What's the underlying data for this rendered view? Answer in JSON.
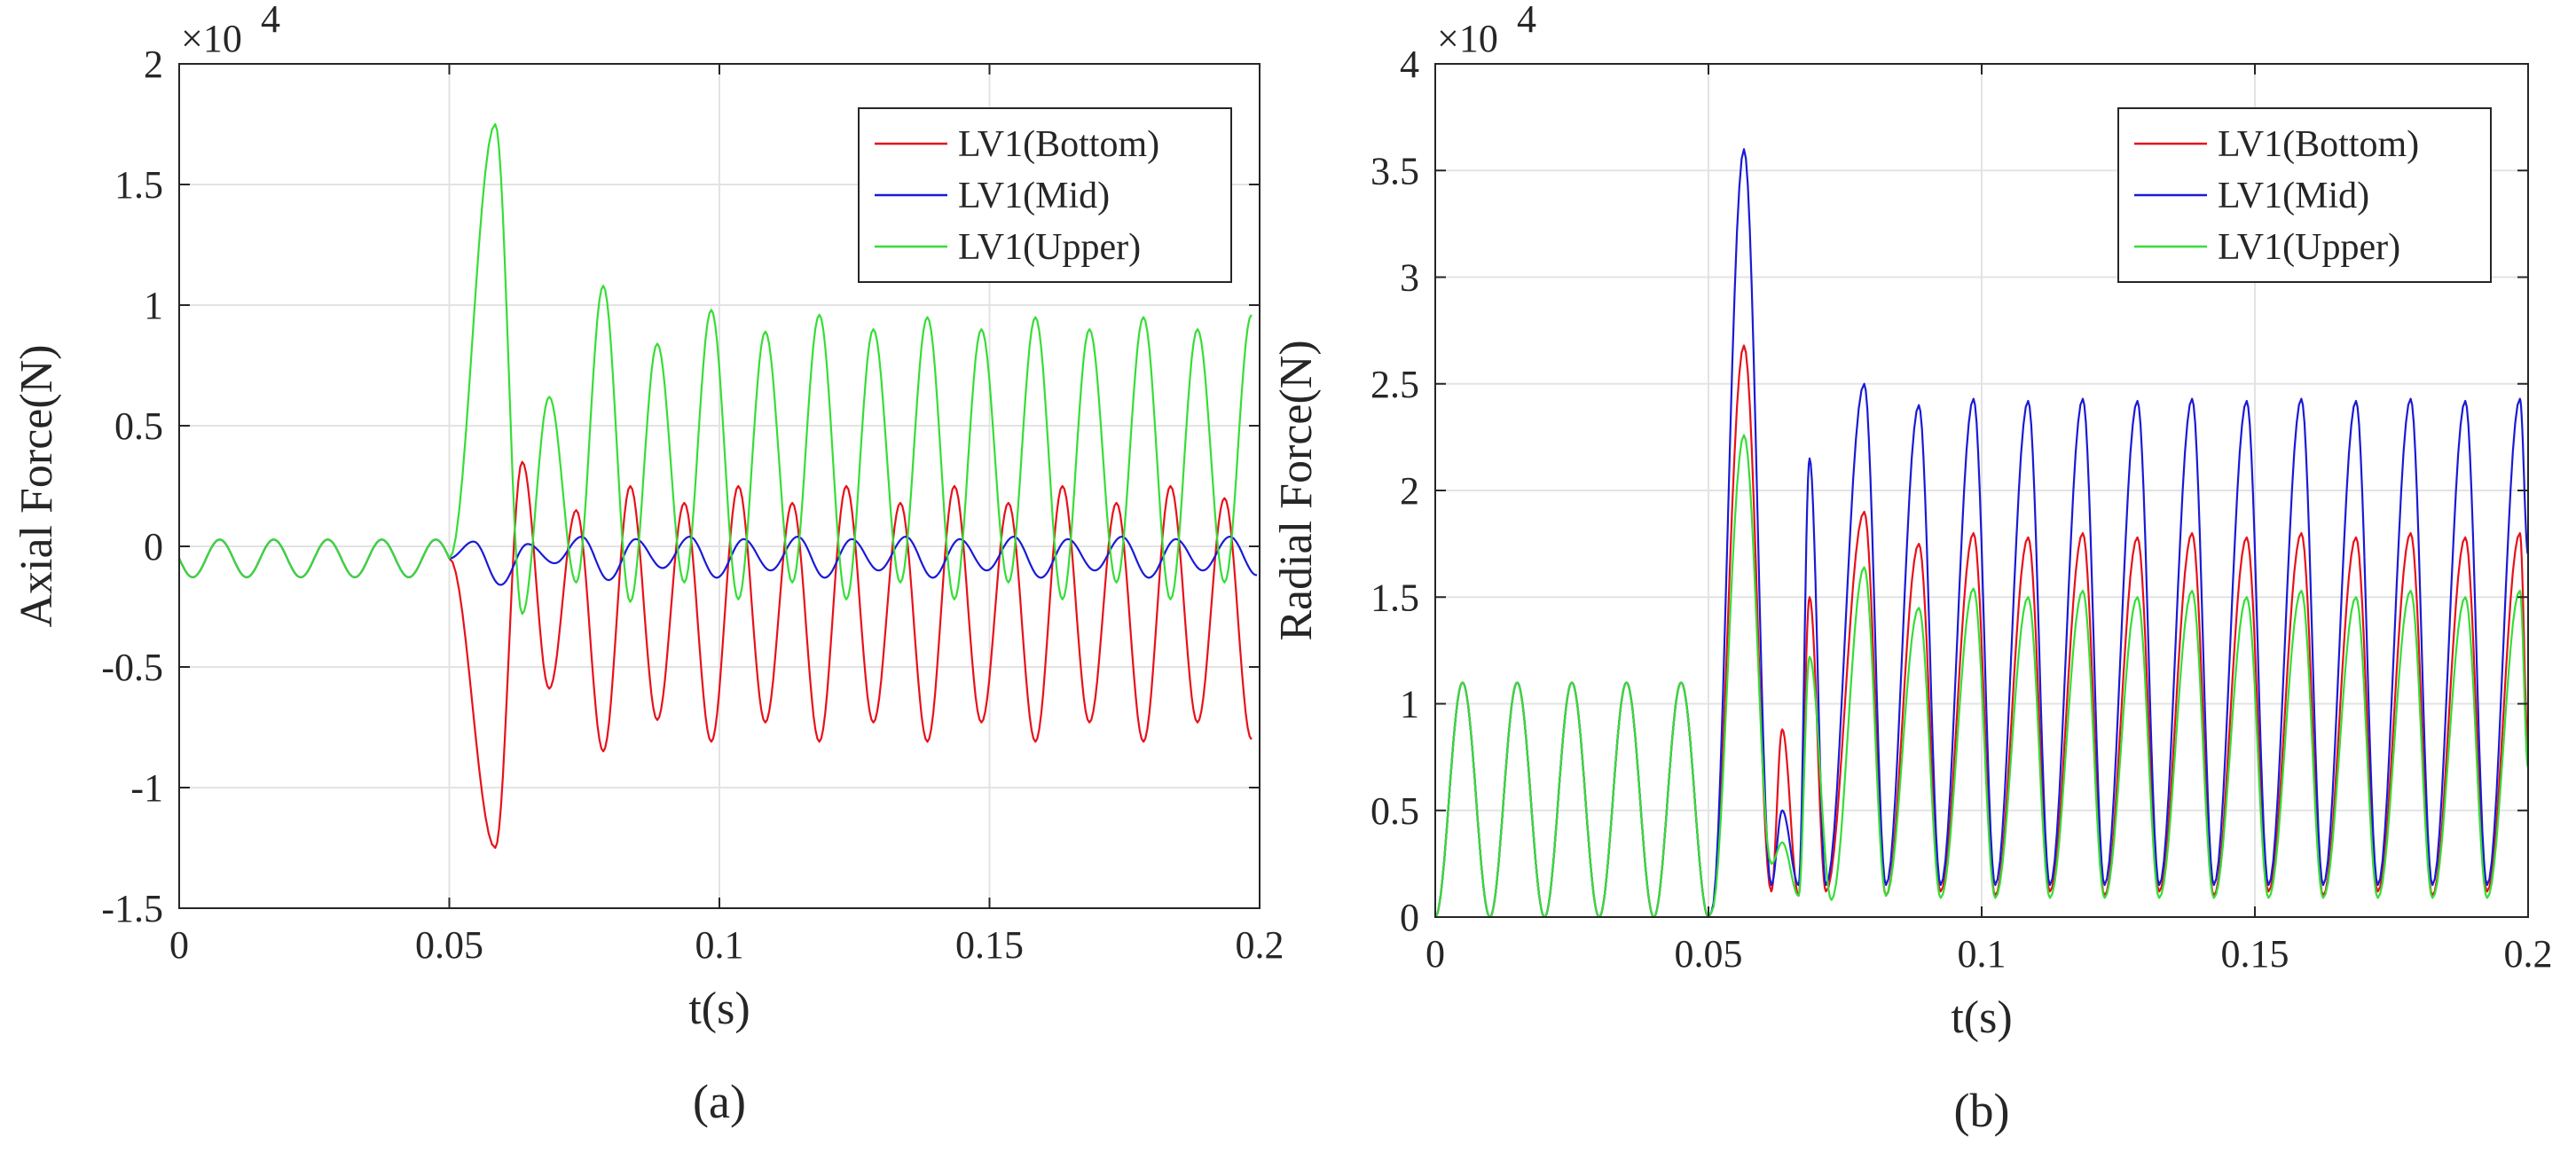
{
  "chart_data": [
    {
      "type": "line",
      "panel_label": "(a)",
      "xlabel": "t(s)",
      "ylabel": "Axial Force(N)",
      "xlim": [
        0,
        0.2
      ],
      "ylim": [
        -15000,
        20000
      ],
      "xticks": [
        0,
        0.05,
        0.1,
        0.15,
        0.2
      ],
      "xtick_labels": [
        "0",
        "0.05",
        "0.1",
        "0.15",
        "0.2"
      ],
      "yticks": [
        -15000,
        -10000,
        -5000,
        0,
        5000,
        10000,
        15000,
        20000
      ],
      "ytick_labels": [
        "-1.5",
        "-1",
        "-0.5",
        "0",
        "0.5",
        "1",
        "1.5",
        "2"
      ],
      "y_multiplier": "×10",
      "y_multiplier_exp": "4",
      "grid": true,
      "legend_position": "top-right",
      "pre_fault": {
        "end": 0.05,
        "amplitude": 1200,
        "offset": -500,
        "period": 0.01
      },
      "series": [
        {
          "name": "LV1(Bottom)",
          "color": "#e8101a",
          "peaks": [
            {
              "t": 0.0585,
              "v": -12500
            },
            {
              "t": 0.0635,
              "v": 3500
            },
            {
              "t": 0.0685,
              "v": -5900
            },
            {
              "t": 0.0735,
              "v": 1500
            },
            {
              "t": 0.0785,
              "v": -8500
            },
            {
              "t": 0.0835,
              "v": 2500
            },
            {
              "t": 0.0885,
              "v": -7200
            },
            {
              "t": 0.0935,
              "v": 1800
            },
            {
              "t": 0.0985,
              "v": -8100
            },
            {
              "t": 0.1035,
              "v": 2500
            },
            {
              "t": 0.1085,
              "v": -7300
            },
            {
              "t": 0.1135,
              "v": 1800
            },
            {
              "t": 0.1185,
              "v": -8100
            },
            {
              "t": 0.1235,
              "v": 2500
            },
            {
              "t": 0.1285,
              "v": -7300
            },
            {
              "t": 0.1335,
              "v": 1800
            },
            {
              "t": 0.1385,
              "v": -8100
            },
            {
              "t": 0.1435,
              "v": 2500
            },
            {
              "t": 0.1485,
              "v": -7300
            },
            {
              "t": 0.1535,
              "v": 1800
            },
            {
              "t": 0.1585,
              "v": -8100
            },
            {
              "t": 0.1635,
              "v": 2500
            },
            {
              "t": 0.1685,
              "v": -7300
            },
            {
              "t": 0.1735,
              "v": 1800
            },
            {
              "t": 0.1785,
              "v": -8100
            },
            {
              "t": 0.1835,
              "v": 2500
            },
            {
              "t": 0.1885,
              "v": -7300
            },
            {
              "t": 0.1935,
              "v": 2000
            },
            {
              "t": 0.1985,
              "v": -8000
            }
          ]
        },
        {
          "name": "LV1(Mid)",
          "color": "#1a1ad6",
          "peaks": [
            {
              "t": 0.0545,
              "v": 200
            },
            {
              "t": 0.0595,
              "v": -1600
            },
            {
              "t": 0.0645,
              "v": 100
            },
            {
              "t": 0.0695,
              "v": -700
            },
            {
              "t": 0.0745,
              "v": 400
            },
            {
              "t": 0.0795,
              "v": -1400
            },
            {
              "t": 0.0845,
              "v": 300
            },
            {
              "t": 0.0895,
              "v": -900
            },
            {
              "t": 0.0945,
              "v": 400
            },
            {
              "t": 0.0995,
              "v": -1300
            },
            {
              "t": 0.1045,
              "v": 300
            },
            {
              "t": 0.1095,
              "v": -1000
            },
            {
              "t": 0.1145,
              "v": 400
            },
            {
              "t": 0.1195,
              "v": -1300
            },
            {
              "t": 0.1245,
              "v": 300
            },
            {
              "t": 0.1295,
              "v": -1000
            },
            {
              "t": 0.1345,
              "v": 400
            },
            {
              "t": 0.1395,
              "v": -1300
            },
            {
              "t": 0.1445,
              "v": 300
            },
            {
              "t": 0.1495,
              "v": -1000
            },
            {
              "t": 0.1545,
              "v": 400
            },
            {
              "t": 0.1595,
              "v": -1300
            },
            {
              "t": 0.1645,
              "v": 300
            },
            {
              "t": 0.1695,
              "v": -1000
            },
            {
              "t": 0.1745,
              "v": 400
            },
            {
              "t": 0.1795,
              "v": -1300
            },
            {
              "t": 0.1845,
              "v": 300
            },
            {
              "t": 0.1895,
              "v": -1000
            },
            {
              "t": 0.1945,
              "v": 400
            },
            {
              "t": 0.1995,
              "v": -1200
            }
          ]
        },
        {
          "name": "LV1(Upper)",
          "color": "#36dd36",
          "peaks": [
            {
              "t": 0.0585,
              "v": 17500
            },
            {
              "t": 0.0635,
              "v": -2800
            },
            {
              "t": 0.0685,
              "v": 6200
            },
            {
              "t": 0.0735,
              "v": -1500
            },
            {
              "t": 0.0785,
              "v": 10800
            },
            {
              "t": 0.0835,
              "v": -2300
            },
            {
              "t": 0.0885,
              "v": 8400
            },
            {
              "t": 0.0935,
              "v": -1500
            },
            {
              "t": 0.0985,
              "v": 9800
            },
            {
              "t": 0.1035,
              "v": -2200
            },
            {
              "t": 0.1085,
              "v": 8900
            },
            {
              "t": 0.1135,
              "v": -1500
            },
            {
              "t": 0.1185,
              "v": 9600
            },
            {
              "t": 0.1235,
              "v": -2200
            },
            {
              "t": 0.1285,
              "v": 9000
            },
            {
              "t": 0.1335,
              "v": -1500
            },
            {
              "t": 0.1385,
              "v": 9500
            },
            {
              "t": 0.1435,
              "v": -2200
            },
            {
              "t": 0.1485,
              "v": 9000
            },
            {
              "t": 0.1535,
              "v": -1500
            },
            {
              "t": 0.1585,
              "v": 9500
            },
            {
              "t": 0.1635,
              "v": -2200
            },
            {
              "t": 0.1685,
              "v": 9000
            },
            {
              "t": 0.1735,
              "v": -1500
            },
            {
              "t": 0.1785,
              "v": 9500
            },
            {
              "t": 0.1835,
              "v": -2200
            },
            {
              "t": 0.1885,
              "v": 9000
            },
            {
              "t": 0.1935,
              "v": -1500
            },
            {
              "t": 0.1985,
              "v": 9600
            }
          ]
        }
      ]
    },
    {
      "type": "line",
      "panel_label": "(b)",
      "xlabel": "t(s)",
      "ylabel": "Radial Force(N)",
      "xlim": [
        0,
        0.2
      ],
      "ylim": [
        0,
        40000
      ],
      "xticks": [
        0,
        0.05,
        0.1,
        0.15,
        0.2
      ],
      "xtick_labels": [
        "0",
        "0.05",
        "0.1",
        "0.15",
        "0.2"
      ],
      "yticks": [
        0,
        5000,
        10000,
        15000,
        20000,
        25000,
        30000,
        35000,
        40000
      ],
      "ytick_labels": [
        "0",
        "0.5",
        "1",
        "1.5",
        "2",
        "2.5",
        "3",
        "3.5",
        "4"
      ],
      "y_multiplier": "×10",
      "y_multiplier_exp": "4",
      "grid": true,
      "legend_position": "top-right",
      "pre_fault": {
        "end": 0.05,
        "amplitude": 11000,
        "offset": 0,
        "period": 0.01
      },
      "series": [
        {
          "name": "LV1(Bottom)",
          "color": "#e8101a",
          "peaks": [
            {
              "t": 0.0505,
              "v": 200
            },
            {
              "t": 0.0565,
              "v": 26800
            },
            {
              "t": 0.0615,
              "v": 1200
            },
            {
              "t": 0.0635,
              "v": 8800
            },
            {
              "t": 0.0665,
              "v": 1000
            },
            {
              "t": 0.0685,
              "v": 15000
            },
            {
              "t": 0.0715,
              "v": 1200
            },
            {
              "t": 0.0785,
              "v": 19000
            },
            {
              "t": 0.0825,
              "v": 1000
            },
            {
              "t": 0.0885,
              "v": 17500
            },
            {
              "t": 0.0925,
              "v": 1200
            },
            {
              "t": 0.0985,
              "v": 18000
            },
            {
              "t": 0.1025,
              "v": 1000
            },
            {
              "t": 0.1085,
              "v": 17800
            },
            {
              "t": 0.1125,
              "v": 1200
            },
            {
              "t": 0.1185,
              "v": 18000
            },
            {
              "t": 0.1225,
              "v": 1000
            },
            {
              "t": 0.1285,
              "v": 17800
            },
            {
              "t": 0.1325,
              "v": 1200
            },
            {
              "t": 0.1385,
              "v": 18000
            },
            {
              "t": 0.1425,
              "v": 1000
            },
            {
              "t": 0.1485,
              "v": 17800
            },
            {
              "t": 0.1525,
              "v": 1200
            },
            {
              "t": 0.1585,
              "v": 18000
            },
            {
              "t": 0.1625,
              "v": 1000
            },
            {
              "t": 0.1685,
              "v": 17800
            },
            {
              "t": 0.1725,
              "v": 1200
            },
            {
              "t": 0.1785,
              "v": 18000
            },
            {
              "t": 0.1825,
              "v": 1000
            },
            {
              "t": 0.1885,
              "v": 17800
            },
            {
              "t": 0.1925,
              "v": 1200
            },
            {
              "t": 0.1985,
              "v": 18000
            },
            {
              "t": 0.2,
              "v": 8000
            }
          ]
        },
        {
          "name": "LV1(Mid)",
          "color": "#1a1ad6",
          "peaks": [
            {
              "t": 0.0505,
              "v": 200
            },
            {
              "t": 0.0565,
              "v": 36000
            },
            {
              "t": 0.0615,
              "v": 1500
            },
            {
              "t": 0.0635,
              "v": 5000
            },
            {
              "t": 0.0665,
              "v": 1500
            },
            {
              "t": 0.0685,
              "v": 21500
            },
            {
              "t": 0.0715,
              "v": 1500
            },
            {
              "t": 0.0785,
              "v": 25000
            },
            {
              "t": 0.0825,
              "v": 1500
            },
            {
              "t": 0.0885,
              "v": 24000
            },
            {
              "t": 0.0925,
              "v": 1500
            },
            {
              "t": 0.0985,
              "v": 24300
            },
            {
              "t": 0.1025,
              "v": 1500
            },
            {
              "t": 0.1085,
              "v": 24200
            },
            {
              "t": 0.1125,
              "v": 1500
            },
            {
              "t": 0.1185,
              "v": 24300
            },
            {
              "t": 0.1225,
              "v": 1500
            },
            {
              "t": 0.1285,
              "v": 24200
            },
            {
              "t": 0.1325,
              "v": 1500
            },
            {
              "t": 0.1385,
              "v": 24300
            },
            {
              "t": 0.1425,
              "v": 1500
            },
            {
              "t": 0.1485,
              "v": 24200
            },
            {
              "t": 0.1525,
              "v": 1500
            },
            {
              "t": 0.1585,
              "v": 24300
            },
            {
              "t": 0.1625,
              "v": 1500
            },
            {
              "t": 0.1685,
              "v": 24200
            },
            {
              "t": 0.1725,
              "v": 1500
            },
            {
              "t": 0.1785,
              "v": 24300
            },
            {
              "t": 0.1825,
              "v": 1500
            },
            {
              "t": 0.1885,
              "v": 24200
            },
            {
              "t": 0.1925,
              "v": 1500
            },
            {
              "t": 0.1985,
              "v": 24300
            },
            {
              "t": 0.2,
              "v": 17000
            }
          ]
        },
        {
          "name": "LV1(Upper)",
          "color": "#36dd36",
          "peaks": [
            {
              "t": 0.0505,
              "v": 200
            },
            {
              "t": 0.0565,
              "v": 22600
            },
            {
              "t": 0.0615,
              "v": 2500
            },
            {
              "t": 0.0635,
              "v": 3500
            },
            {
              "t": 0.0665,
              "v": 1000
            },
            {
              "t": 0.0685,
              "v": 12200
            },
            {
              "t": 0.0725,
              "v": 800
            },
            {
              "t": 0.0785,
              "v": 16400
            },
            {
              "t": 0.0825,
              "v": 1000
            },
            {
              "t": 0.0885,
              "v": 14500
            },
            {
              "t": 0.0925,
              "v": 900
            },
            {
              "t": 0.0985,
              "v": 15400
            },
            {
              "t": 0.1025,
              "v": 900
            },
            {
              "t": 0.1085,
              "v": 15000
            },
            {
              "t": 0.1125,
              "v": 900
            },
            {
              "t": 0.1185,
              "v": 15300
            },
            {
              "t": 0.1225,
              "v": 900
            },
            {
              "t": 0.1285,
              "v": 15000
            },
            {
              "t": 0.1325,
              "v": 900
            },
            {
              "t": 0.1385,
              "v": 15300
            },
            {
              "t": 0.1425,
              "v": 900
            },
            {
              "t": 0.1485,
              "v": 15000
            },
            {
              "t": 0.1525,
              "v": 900
            },
            {
              "t": 0.1585,
              "v": 15300
            },
            {
              "t": 0.1625,
              "v": 900
            },
            {
              "t": 0.1685,
              "v": 15000
            },
            {
              "t": 0.1725,
              "v": 900
            },
            {
              "t": 0.1785,
              "v": 15300
            },
            {
              "t": 0.1825,
              "v": 900
            },
            {
              "t": 0.1885,
              "v": 15000
            },
            {
              "t": 0.1925,
              "v": 900
            },
            {
              "t": 0.1985,
              "v": 15300
            },
            {
              "t": 0.2,
              "v": 7000
            }
          ]
        }
      ]
    }
  ]
}
